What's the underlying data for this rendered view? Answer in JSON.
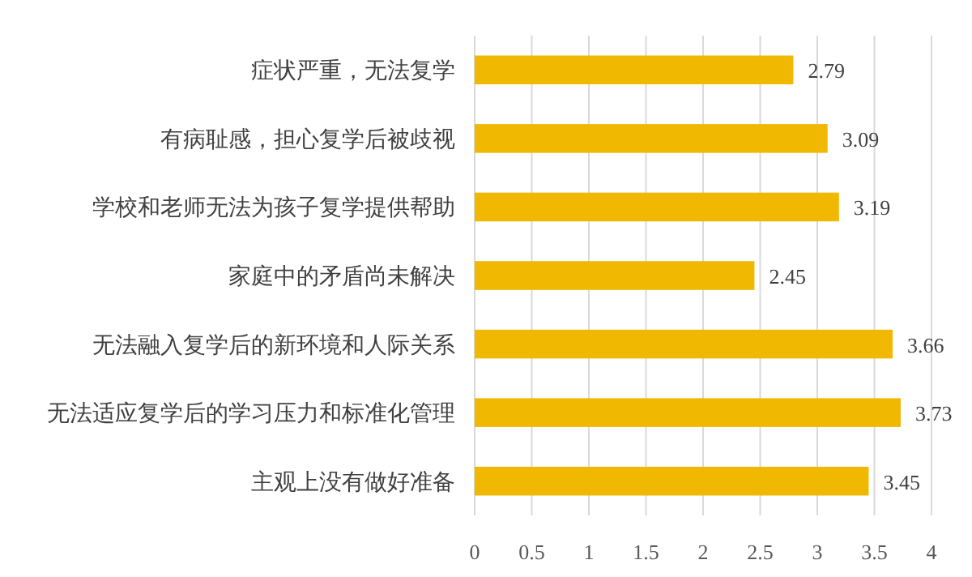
{
  "chart_data": {
    "type": "bar",
    "orientation": "horizontal",
    "categories": [
      "症状严重，无法复学",
      "有病耻感，担心复学后被歧视",
      "学校和老师无法为孩子复学提供帮助",
      "家庭中的矛盾尚未解决",
      "无法融入复学后的新环境和人际关系",
      "无法适应复学后的学习压力和标准化管理",
      "主观上没有做好准备"
    ],
    "values": [
      2.79,
      3.09,
      3.19,
      2.45,
      3.66,
      3.73,
      3.45
    ],
    "color": "#f0b800",
    "xlim": [
      0,
      4
    ],
    "xticks": [
      0,
      0.5,
      1,
      1.5,
      2,
      2.5,
      3,
      3.5,
      4
    ],
    "grid": "x",
    "data_labels": true
  }
}
